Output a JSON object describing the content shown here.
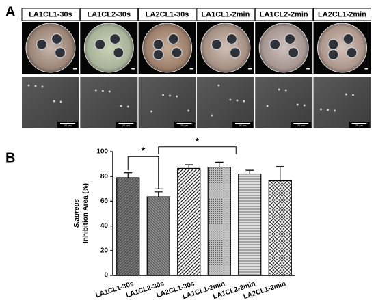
{
  "panel_a": {
    "label": "A",
    "headers": [
      "LA1CL1-30s",
      "LA1CL2-30s",
      "LA2CL1-30s",
      "LA1CL1-2min",
      "LA1CL2-2min",
      "LA2CL1-2min"
    ],
    "scale_label": "20 µm"
  },
  "chart_data": {
    "type": "bar",
    "panel_label": "B",
    "y_label": [
      "S.aureus",
      "Inhibition Area (%)"
    ],
    "categories": [
      "LA1CL1-30s",
      "LA1CL2-30s",
      "LA2CL1-30s",
      "LA1CL1-2min",
      "LA1CL2-2min",
      "LA2CL1-2min"
    ],
    "values": [
      79,
      63.5,
      86.5,
      87.5,
      82,
      76.5
    ],
    "errors": [
      4,
      4,
      3,
      4,
      3,
      11.5
    ],
    "ylim": [
      0,
      100
    ],
    "yticks": [
      0,
      20,
      40,
      60,
      80,
      100
    ],
    "annotations": [
      "*",
      "*"
    ]
  }
}
